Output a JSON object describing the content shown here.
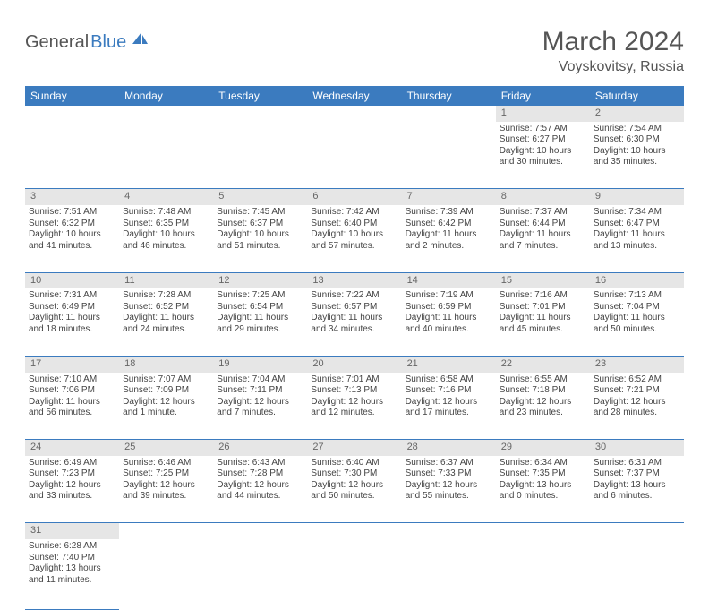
{
  "logo": {
    "text1": "General",
    "text2": "Blue",
    "color1": "#555555",
    "color2": "#3b7bbf"
  },
  "title": "March 2024",
  "location": "Voyskovitsy, Russia",
  "table": {
    "header_bg": "#3b7bbf",
    "header_fg": "#ffffff",
    "daynum_bg": "#e6e6e6",
    "row_border": "#3b7bbf",
    "font_size_header": 12,
    "font_size_daynum": 11,
    "font_size_detail": 10,
    "columns": [
      "Sunday",
      "Monday",
      "Tuesday",
      "Wednesday",
      "Thursday",
      "Friday",
      "Saturday"
    ],
    "weeks": [
      [
        null,
        null,
        null,
        null,
        null,
        {
          "day": "1",
          "sunrise": "7:57 AM",
          "sunset": "6:27 PM",
          "daylight": "10 hours and 30 minutes."
        },
        {
          "day": "2",
          "sunrise": "7:54 AM",
          "sunset": "6:30 PM",
          "daylight": "10 hours and 35 minutes."
        }
      ],
      [
        {
          "day": "3",
          "sunrise": "7:51 AM",
          "sunset": "6:32 PM",
          "daylight": "10 hours and 41 minutes."
        },
        {
          "day": "4",
          "sunrise": "7:48 AM",
          "sunset": "6:35 PM",
          "daylight": "10 hours and 46 minutes."
        },
        {
          "day": "5",
          "sunrise": "7:45 AM",
          "sunset": "6:37 PM",
          "daylight": "10 hours and 51 minutes."
        },
        {
          "day": "6",
          "sunrise": "7:42 AM",
          "sunset": "6:40 PM",
          "daylight": "10 hours and 57 minutes."
        },
        {
          "day": "7",
          "sunrise": "7:39 AM",
          "sunset": "6:42 PM",
          "daylight": "11 hours and 2 minutes."
        },
        {
          "day": "8",
          "sunrise": "7:37 AM",
          "sunset": "6:44 PM",
          "daylight": "11 hours and 7 minutes."
        },
        {
          "day": "9",
          "sunrise": "7:34 AM",
          "sunset": "6:47 PM",
          "daylight": "11 hours and 13 minutes."
        }
      ],
      [
        {
          "day": "10",
          "sunrise": "7:31 AM",
          "sunset": "6:49 PM",
          "daylight": "11 hours and 18 minutes."
        },
        {
          "day": "11",
          "sunrise": "7:28 AM",
          "sunset": "6:52 PM",
          "daylight": "11 hours and 24 minutes."
        },
        {
          "day": "12",
          "sunrise": "7:25 AM",
          "sunset": "6:54 PM",
          "daylight": "11 hours and 29 minutes."
        },
        {
          "day": "13",
          "sunrise": "7:22 AM",
          "sunset": "6:57 PM",
          "daylight": "11 hours and 34 minutes."
        },
        {
          "day": "14",
          "sunrise": "7:19 AM",
          "sunset": "6:59 PM",
          "daylight": "11 hours and 40 minutes."
        },
        {
          "day": "15",
          "sunrise": "7:16 AM",
          "sunset": "7:01 PM",
          "daylight": "11 hours and 45 minutes."
        },
        {
          "day": "16",
          "sunrise": "7:13 AM",
          "sunset": "7:04 PM",
          "daylight": "11 hours and 50 minutes."
        }
      ],
      [
        {
          "day": "17",
          "sunrise": "7:10 AM",
          "sunset": "7:06 PM",
          "daylight": "11 hours and 56 minutes."
        },
        {
          "day": "18",
          "sunrise": "7:07 AM",
          "sunset": "7:09 PM",
          "daylight": "12 hours and 1 minute."
        },
        {
          "day": "19",
          "sunrise": "7:04 AM",
          "sunset": "7:11 PM",
          "daylight": "12 hours and 7 minutes."
        },
        {
          "day": "20",
          "sunrise": "7:01 AM",
          "sunset": "7:13 PM",
          "daylight": "12 hours and 12 minutes."
        },
        {
          "day": "21",
          "sunrise": "6:58 AM",
          "sunset": "7:16 PM",
          "daylight": "12 hours and 17 minutes."
        },
        {
          "day": "22",
          "sunrise": "6:55 AM",
          "sunset": "7:18 PM",
          "daylight": "12 hours and 23 minutes."
        },
        {
          "day": "23",
          "sunrise": "6:52 AM",
          "sunset": "7:21 PM",
          "daylight": "12 hours and 28 minutes."
        }
      ],
      [
        {
          "day": "24",
          "sunrise": "6:49 AM",
          "sunset": "7:23 PM",
          "daylight": "12 hours and 33 minutes."
        },
        {
          "day": "25",
          "sunrise": "6:46 AM",
          "sunset": "7:25 PM",
          "daylight": "12 hours and 39 minutes."
        },
        {
          "day": "26",
          "sunrise": "6:43 AM",
          "sunset": "7:28 PM",
          "daylight": "12 hours and 44 minutes."
        },
        {
          "day": "27",
          "sunrise": "6:40 AM",
          "sunset": "7:30 PM",
          "daylight": "12 hours and 50 minutes."
        },
        {
          "day": "28",
          "sunrise": "6:37 AM",
          "sunset": "7:33 PM",
          "daylight": "12 hours and 55 minutes."
        },
        {
          "day": "29",
          "sunrise": "6:34 AM",
          "sunset": "7:35 PM",
          "daylight": "13 hours and 0 minutes."
        },
        {
          "day": "30",
          "sunrise": "6:31 AM",
          "sunset": "7:37 PM",
          "daylight": "13 hours and 6 minutes."
        }
      ],
      [
        {
          "day": "31",
          "sunrise": "6:28 AM",
          "sunset": "7:40 PM",
          "daylight": "13 hours and 11 minutes."
        },
        null,
        null,
        null,
        null,
        null,
        null
      ]
    ],
    "labels": {
      "sunrise": "Sunrise:",
      "sunset": "Sunset:",
      "daylight": "Daylight:"
    }
  }
}
